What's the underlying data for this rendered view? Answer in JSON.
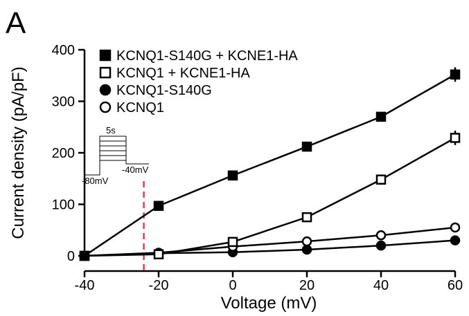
{
  "panel_label": "A",
  "chart_data": {
    "type": "line",
    "title": "",
    "xlabel": "Voltage (mV)",
    "ylabel": "Current density (pA/pF)",
    "xlim": [
      -40,
      60
    ],
    "ylim": [
      0,
      400
    ],
    "xticks": [
      -40,
      -20,
      0,
      20,
      40,
      60
    ],
    "yticks": [
      0,
      100,
      200,
      300,
      400
    ],
    "grid": false,
    "legend_position": "top-left",
    "x": [
      -40,
      -20,
      0,
      20,
      40,
      60
    ],
    "series": [
      {
        "name": "KCNQ1-S140G + KCNE1-HA",
        "marker": "square-filled",
        "values": [
          0,
          97,
          156,
          212,
          270,
          352
        ],
        "errors": [
          3,
          5,
          6,
          8,
          8,
          14
        ]
      },
      {
        "name": "KCNQ1 + KCNE1-HA",
        "marker": "square-open",
        "values": [
          0,
          3,
          27,
          75,
          148,
          229
        ],
        "errors": [
          2,
          3,
          4,
          5,
          10,
          14
        ]
      },
      {
        "name": "KCNQ1-S140G",
        "marker": "circle-filled",
        "values": [
          0,
          5,
          7,
          12,
          20,
          30
        ],
        "errors": [
          1,
          2,
          2,
          3,
          3,
          4
        ]
      },
      {
        "name": "KCNQ1",
        "marker": "circle-open",
        "values": [
          0,
          6,
          18,
          28,
          40,
          55
        ],
        "errors": [
          1,
          2,
          2,
          3,
          3,
          4
        ]
      }
    ],
    "reference_line": {
      "x": -24,
      "style": "dashed",
      "color": "#e8384f"
    },
    "inset": {
      "duration_label": "5s",
      "holding_label": "-80mV",
      "tail_label": "-40mV"
    },
    "colors": {
      "line": "#000000",
      "dashed_line": "#e8384f"
    }
  }
}
